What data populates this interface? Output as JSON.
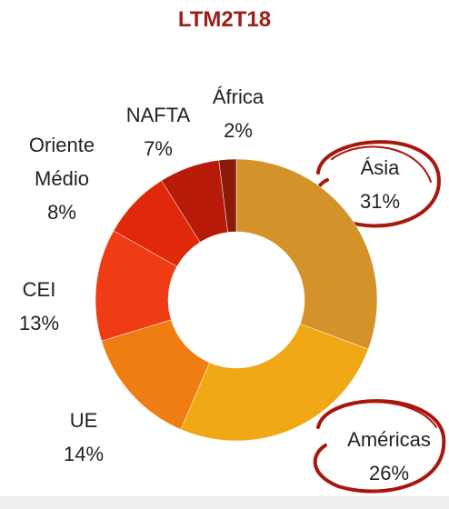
{
  "chart_data": {
    "type": "donut",
    "title": "LTM2T18",
    "categories": [
      "Ásia",
      "Américas",
      "UE",
      "CEI",
      "Oriente Médio",
      "NAFTA",
      "África"
    ],
    "values": [
      31,
      26,
      14,
      13,
      8,
      7,
      2
    ],
    "value_labels": [
      "31%",
      "26%",
      "14%",
      "13%",
      "8%",
      "7%",
      "2%"
    ],
    "colors": [
      "#D4922A",
      "#F0A814",
      "#F07D14",
      "#F03C14",
      "#E0280A",
      "#B81A0A",
      "#8B1A0A"
    ]
  }
}
